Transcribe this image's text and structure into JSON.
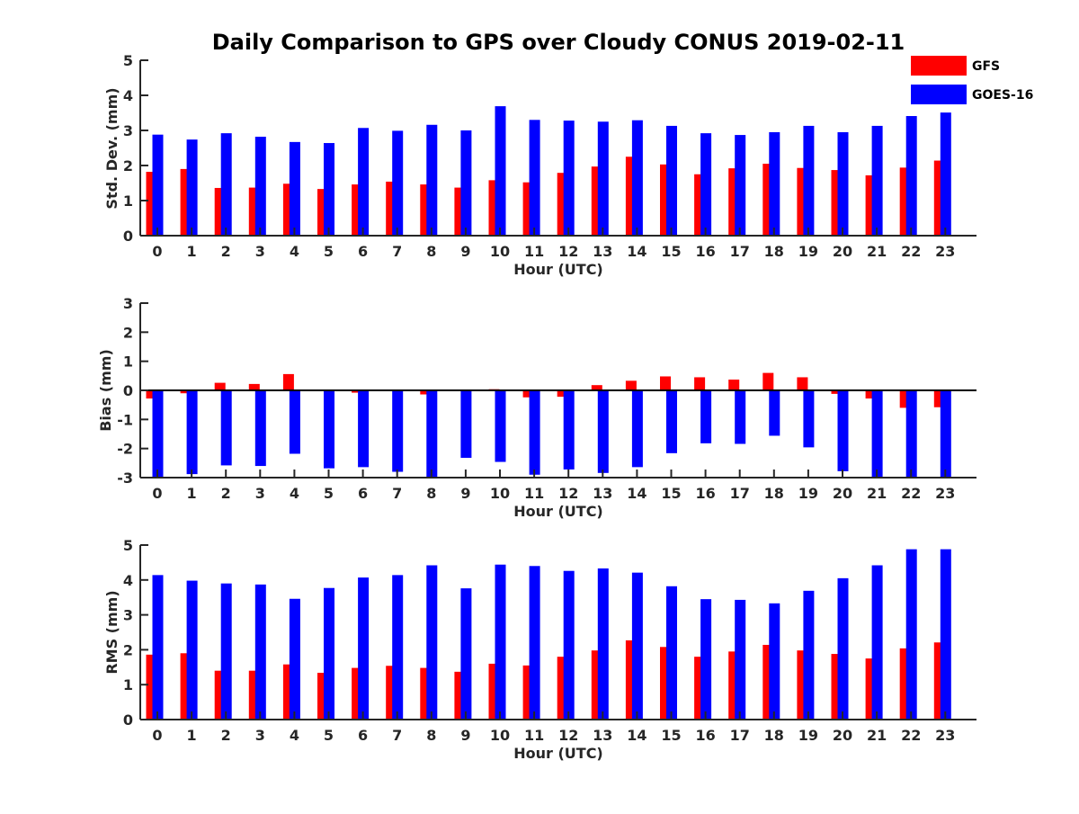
{
  "figure": {
    "title": "Daily Comparison to GPS over Cloudy CONUS 2019-02-11",
    "legend": [
      {
        "name": "GFS",
        "color": "#ff0000"
      },
      {
        "name": "GOES-16",
        "color": "#0000ff"
      }
    ]
  },
  "chart_data": [
    {
      "type": "bar",
      "title": "Daily Comparison to GPS over Cloudy CONUS 2019-02-11",
      "xlabel": "Hour (UTC)",
      "ylabel": "Std. Dev. (mm)",
      "ylim": [
        0,
        5
      ],
      "yticks": [
        "0",
        "1",
        "2",
        "3",
        "4",
        "5"
      ],
      "categories": [
        "0",
        "1",
        "2",
        "3",
        "4",
        "5",
        "6",
        "7",
        "8",
        "9",
        "10",
        "11",
        "12",
        "13",
        "14",
        "15",
        "16",
        "17",
        "18",
        "19",
        "20",
        "21",
        "22",
        "23"
      ],
      "legend": "top-right",
      "grid": false,
      "series": [
        {
          "name": "GFS",
          "color": "#ff0000",
          "values": [
            1.82,
            1.9,
            1.36,
            1.37,
            1.48,
            1.33,
            1.46,
            1.54,
            1.46,
            1.37,
            1.58,
            1.52,
            1.79,
            1.97,
            2.25,
            2.03,
            1.75,
            1.92,
            2.05,
            1.93,
            1.87,
            1.72,
            1.94,
            2.14
          ]
        },
        {
          "name": "GOES-16",
          "color": "#0000ff",
          "values": [
            2.88,
            2.74,
            2.92,
            2.82,
            2.67,
            2.64,
            3.07,
            2.99,
            3.16,
            3.0,
            3.69,
            3.3,
            3.28,
            3.25,
            3.29,
            3.13,
            2.92,
            2.87,
            2.95,
            3.13,
            2.95,
            3.13,
            3.41,
            3.51
          ]
        }
      ]
    },
    {
      "type": "bar",
      "xlabel": "Hour (UTC)",
      "ylabel": "Bias (mm)",
      "ylim": [
        -3,
        3
      ],
      "yticks": [
        "-3",
        "-2",
        "-1",
        "0",
        "1",
        "2",
        "3"
      ],
      "categories": [
        "0",
        "1",
        "2",
        "3",
        "4",
        "5",
        "6",
        "7",
        "8",
        "9",
        "10",
        "11",
        "12",
        "13",
        "14",
        "15",
        "16",
        "17",
        "18",
        "19",
        "20",
        "21",
        "22",
        "23"
      ],
      "grid": false,
      "series": [
        {
          "name": "GFS",
          "color": "#ff0000",
          "values": [
            -0.28,
            -0.1,
            0.26,
            0.22,
            0.56,
            0.0,
            -0.08,
            0.03,
            -0.14,
            0.0,
            0.04,
            -0.24,
            -0.22,
            0.18,
            0.33,
            0.48,
            0.45,
            0.37,
            0.6,
            0.45,
            -0.12,
            -0.28,
            -0.6,
            -0.58
          ]
        },
        {
          "name": "GOES-16",
          "color": "#0000ff",
          "values": [
            -3.0,
            -2.88,
            -2.58,
            -2.6,
            -2.18,
            -2.68,
            -2.64,
            -2.8,
            -3.0,
            -2.32,
            -2.46,
            -2.9,
            -2.72,
            -2.84,
            -2.64,
            -2.16,
            -1.82,
            -1.84,
            -1.56,
            -1.96,
            -2.78,
            -3.0,
            -3.0,
            -3.0
          ]
        }
      ]
    },
    {
      "type": "bar",
      "xlabel": "Hour (UTC)",
      "ylabel": "RMS (mm)",
      "ylim": [
        0,
        5
      ],
      "yticks": [
        "0",
        "1",
        "2",
        "3",
        "4",
        "5"
      ],
      "categories": [
        "0",
        "1",
        "2",
        "3",
        "4",
        "5",
        "6",
        "7",
        "8",
        "9",
        "10",
        "11",
        "12",
        "13",
        "14",
        "15",
        "16",
        "17",
        "18",
        "19",
        "20",
        "21",
        "22",
        "23"
      ],
      "grid": false,
      "series": [
        {
          "name": "GFS",
          "color": "#ff0000",
          "values": [
            1.86,
            1.9,
            1.4,
            1.4,
            1.58,
            1.34,
            1.48,
            1.54,
            1.48,
            1.37,
            1.6,
            1.55,
            1.8,
            1.98,
            2.27,
            2.08,
            1.8,
            1.95,
            2.14,
            1.98,
            1.88,
            1.75,
            2.04,
            2.21
          ]
        },
        {
          "name": "GOES-16",
          "color": "#0000ff",
          "values": [
            4.14,
            3.98,
            3.9,
            3.87,
            3.46,
            3.77,
            4.07,
            4.14,
            4.42,
            3.76,
            4.44,
            4.4,
            4.26,
            4.33,
            4.21,
            3.82,
            3.45,
            3.43,
            3.33,
            3.69,
            4.05,
            4.42,
            4.88,
            4.88
          ]
        }
      ]
    }
  ]
}
